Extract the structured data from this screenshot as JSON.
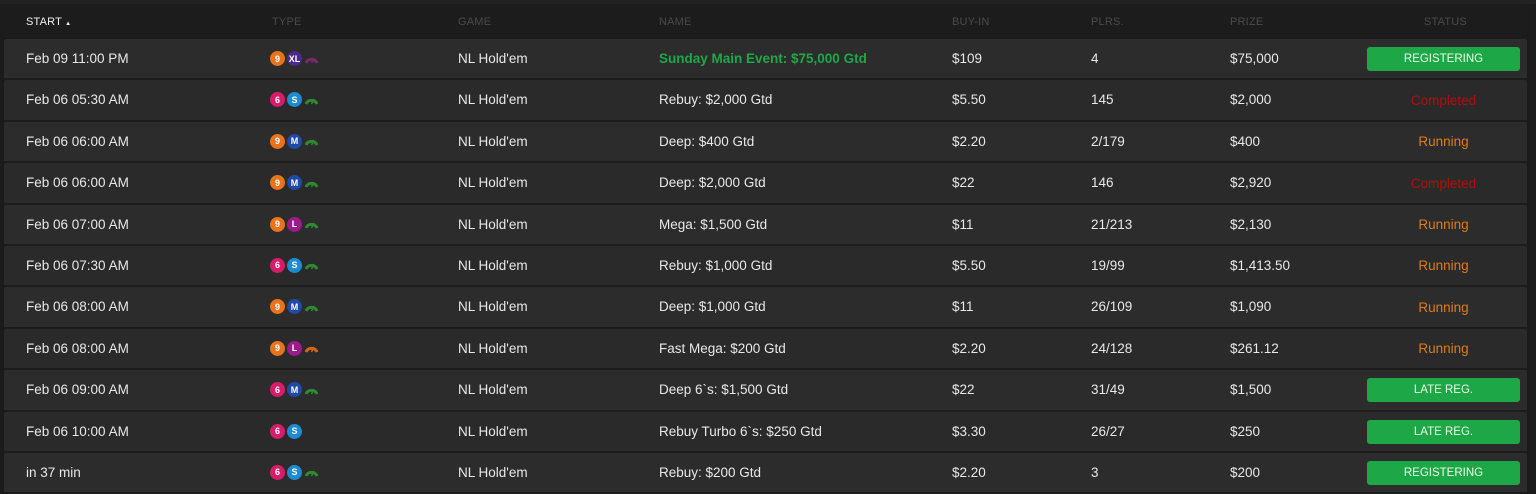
{
  "colors": {
    "registering": "#1ea747",
    "completed": "#b50d0d",
    "running": "#e07b13",
    "featured_name": "#1ea747"
  },
  "header": {
    "start": "START",
    "sort_icon": "▲",
    "type": "TYPE",
    "game": "GAME",
    "name": "NAME",
    "buyin": "BUY-IN",
    "players": "PLRS.",
    "prize": "PRIZE",
    "status": "STATUS"
  },
  "rows": [
    {
      "start": "Feb 09 11:00 PM",
      "types": [
        {
          "t": "9",
          "c": "#e8731c"
        },
        {
          "t": "XL",
          "c": "#4b2a8c"
        }
      ],
      "speed": "#7a2a6a",
      "game": "NL Hold'em",
      "name": "Sunday Main Event: $75,000 Gtd",
      "featured": true,
      "buyin": "$109",
      "players": "4",
      "prize": "$75,000",
      "status": "REGISTERING",
      "kind": "btn"
    },
    {
      "start": "Feb 06 05:30 AM",
      "types": [
        {
          "t": "6",
          "c": "#d81b6a"
        },
        {
          "t": "S",
          "c": "#1d8ccf"
        }
      ],
      "speed": "#2f8a2f",
      "game": "NL Hold'em",
      "name": "Rebuy: $2,000 Gtd",
      "buyin": "$5.50",
      "players": "145",
      "prize": "$2,000",
      "status": "Completed",
      "kind": "completed"
    },
    {
      "start": "Feb 06 06:00 AM",
      "types": [
        {
          "t": "9",
          "c": "#e8731c"
        },
        {
          "t": "M",
          "c": "#1f4aa8"
        }
      ],
      "speed": "#2f8a2f",
      "game": "NL Hold'em",
      "name": "Deep: $400 Gtd",
      "buyin": "$2.20",
      "players": "2/179",
      "prize": "$400",
      "status": "Running",
      "kind": "running"
    },
    {
      "start": "Feb 06 06:00 AM",
      "types": [
        {
          "t": "9",
          "c": "#e8731c"
        },
        {
          "t": "M",
          "c": "#1f4aa8"
        }
      ],
      "speed": "#2f8a2f",
      "game": "NL Hold'em",
      "name": "Deep: $2,000 Gtd",
      "buyin": "$22",
      "players": "146",
      "prize": "$2,920",
      "status": "Completed",
      "kind": "completed"
    },
    {
      "start": "Feb 06 07:00 AM",
      "types": [
        {
          "t": "9",
          "c": "#e8731c"
        },
        {
          "t": "L",
          "c": "#9b1b8a"
        }
      ],
      "speed": "#2f8a2f",
      "game": "NL Hold'em",
      "name": "Mega: $1,500 Gtd",
      "buyin": "$11",
      "players": "21/213",
      "prize": "$2,130",
      "status": "Running",
      "kind": "running"
    },
    {
      "start": "Feb 06 07:30 AM",
      "types": [
        {
          "t": "6",
          "c": "#d81b6a"
        },
        {
          "t": "S",
          "c": "#1d8ccf"
        }
      ],
      "speed": "#2f8a2f",
      "game": "NL Hold'em",
      "name": "Rebuy: $1,000 Gtd",
      "buyin": "$5.50",
      "players": "19/99",
      "prize": "$1,413.50",
      "status": "Running",
      "kind": "running"
    },
    {
      "start": "Feb 06 08:00 AM",
      "types": [
        {
          "t": "9",
          "c": "#e8731c"
        },
        {
          "t": "M",
          "c": "#1f4aa8"
        }
      ],
      "speed": "#2f8a2f",
      "game": "NL Hold'em",
      "name": "Deep: $1,000 Gtd",
      "buyin": "$11",
      "players": "26/109",
      "prize": "$1,090",
      "status": "Running",
      "kind": "running"
    },
    {
      "start": "Feb 06 08:00 AM",
      "types": [
        {
          "t": "9",
          "c": "#e8731c"
        },
        {
          "t": "L",
          "c": "#9b1b8a"
        }
      ],
      "speed": "#d4661a",
      "game": "NL Hold'em",
      "name": "Fast Mega: $200 Gtd",
      "buyin": "$2.20",
      "players": "24/128",
      "prize": "$261.12",
      "status": "Running",
      "kind": "running"
    },
    {
      "start": "Feb 06 09:00 AM",
      "types": [
        {
          "t": "6",
          "c": "#d81b6a"
        },
        {
          "t": "M",
          "c": "#1f4aa8"
        }
      ],
      "speed": "#2f8a2f",
      "game": "NL Hold'em",
      "name": "Deep 6`s: $1,500 Gtd",
      "buyin": "$22",
      "players": "31/49",
      "prize": "$1,500",
      "status": "LATE REG.",
      "kind": "btn"
    },
    {
      "start": "Feb 06 10:00 AM",
      "types": [
        {
          "t": "6",
          "c": "#d81b6a"
        },
        {
          "t": "S",
          "c": "#1d8ccf"
        }
      ],
      "speed": null,
      "game": "NL Hold'em",
      "name": "Rebuy Turbo 6`s: $250 Gtd",
      "buyin": "$3.30",
      "players": "26/27",
      "prize": "$250",
      "status": "LATE REG.",
      "kind": "btn"
    },
    {
      "start": "in 37 min",
      "types": [
        {
          "t": "6",
          "c": "#d81b6a"
        },
        {
          "t": "S",
          "c": "#1d8ccf"
        }
      ],
      "speed": "#2f8a2f",
      "game": "NL Hold'em",
      "name": "Rebuy: $200 Gtd",
      "buyin": "$2.20",
      "players": "3",
      "prize": "$200",
      "status": "REGISTERING",
      "kind": "btn"
    }
  ]
}
